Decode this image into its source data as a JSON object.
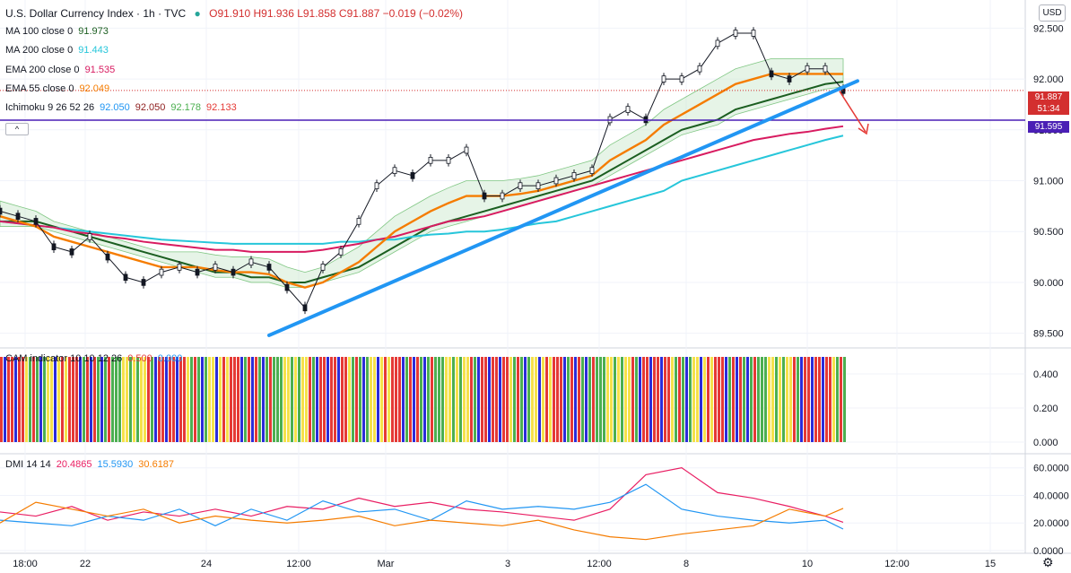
{
  "header": {
    "title": "U.S. Dollar Currency Index · 1h · TVC",
    "ohlc": "O91.910 H91.936 L91.858 C91.887 −0.019 (−0.02%)",
    "currency_button": "USD",
    "collapse_button": "^"
  },
  "legends": {
    "ma100": {
      "label": "MA 100 close 0",
      "value": "91.973",
      "color": "#1b5e20"
    },
    "ma200": {
      "label": "MA 200 close 0",
      "value": "91.443",
      "color": "#26c6da"
    },
    "ema200": {
      "label": "EMA 200 close 0",
      "value": "91.535",
      "color": "#d81b60"
    },
    "ema55": {
      "label": "EMA 55 close 0",
      "value": "92.049",
      "color": "#f57c00"
    },
    "ichimoku": {
      "label": "Ichimoku 9 26 52 26",
      "v1": "92.050",
      "v2": "92.050",
      "v3": "92.178",
      "v4": "92.133",
      "c1": "#2196f3",
      "c2": "#8d1c1c",
      "c3": "#4caf50",
      "c4": "#e53935"
    },
    "cam": {
      "label": "CAM indicator 10 10 12 26",
      "v1": "0.500",
      "v2": "0.000",
      "c1": "#e53935",
      "c2": "#2196f3"
    },
    "dmi": {
      "label": "DMI 14 14",
      "v1": "20.4865",
      "v2": "15.5930",
      "v3": "30.6187",
      "c1": "#e91e63",
      "c2": "#2196f3",
      "c3": "#f57c00"
    }
  },
  "price_tags": {
    "last": "91.887",
    "countdown": "51:34",
    "hline": "91.595"
  },
  "chart_data": [
    {
      "type": "line",
      "title": "U.S. Dollar Currency Index · 1h · TVC",
      "ylim": [
        89.4,
        92.6
      ],
      "y_ticks": [
        "92.500",
        "92.000",
        "91.500",
        "91.000",
        "90.500",
        "90.000",
        "89.500"
      ],
      "y_tick_values": [
        92.5,
        92.0,
        91.5,
        91.0,
        90.5,
        90.0,
        89.5
      ],
      "x_tick_labels": [
        "18:00",
        "22",
        "24",
        "12:00",
        "Mar",
        "3",
        "12:00",
        "8",
        "10",
        "12:00",
        "15"
      ],
      "x": [
        0,
        20,
        40,
        60,
        80,
        100,
        120,
        140,
        160,
        180,
        200,
        220,
        240,
        260,
        280,
        300,
        320,
        340,
        360,
        380,
        400,
        420,
        440,
        460,
        480,
        500,
        520,
        540,
        560,
        580,
        600,
        620,
        640,
        660,
        680,
        700,
        720,
        740,
        760,
        780,
        800,
        820,
        840,
        860,
        880,
        900,
        920,
        940
      ],
      "series": [
        {
          "name": "price",
          "color": "#131722",
          "values": [
            90.7,
            90.65,
            90.6,
            90.35,
            90.3,
            90.45,
            90.25,
            90.05,
            90.0,
            90.1,
            90.15,
            90.1,
            90.15,
            90.1,
            90.2,
            90.15,
            89.95,
            89.75,
            90.15,
            90.3,
            90.6,
            90.95,
            91.1,
            91.05,
            91.2,
            91.2,
            91.3,
            90.85,
            90.85,
            90.95,
            90.95,
            91.0,
            91.05,
            91.1,
            91.6,
            91.7,
            91.6,
            92.0,
            92.0,
            92.1,
            92.35,
            92.45,
            92.45,
            92.05,
            92.0,
            92.1,
            92.1,
            91.887
          ]
        },
        {
          "name": "MA 100 close 0",
          "color": "#1b5e20",
          "values": [
            90.6,
            90.6,
            90.6,
            90.55,
            90.5,
            90.45,
            90.4,
            90.35,
            90.3,
            90.25,
            90.2,
            90.15,
            90.1,
            90.1,
            90.05,
            90.05,
            90.0,
            90.0,
            90.05,
            90.1,
            90.15,
            90.25,
            90.35,
            90.45,
            90.55,
            90.6,
            90.65,
            90.7,
            90.75,
            90.8,
            90.85,
            90.9,
            90.95,
            91.0,
            91.1,
            91.2,
            91.3,
            91.4,
            91.5,
            91.55,
            91.6,
            91.7,
            91.75,
            91.8,
            91.85,
            91.9,
            91.95,
            91.973
          ]
        },
        {
          "name": "MA 200 close 0",
          "color": "#26c6da",
          "values": [
            90.6,
            90.58,
            90.56,
            90.54,
            90.52,
            90.5,
            90.48,
            90.46,
            90.44,
            90.42,
            90.41,
            90.4,
            90.39,
            90.38,
            90.38,
            90.38,
            90.38,
            90.38,
            90.38,
            90.4,
            90.4,
            90.42,
            90.42,
            90.45,
            90.47,
            90.48,
            90.5,
            90.5,
            90.52,
            90.55,
            90.58,
            90.6,
            90.65,
            90.7,
            90.75,
            90.8,
            90.85,
            90.9,
            91.0,
            91.05,
            91.1,
            91.15,
            91.2,
            91.25,
            91.3,
            91.35,
            91.4,
            91.443
          ]
        },
        {
          "name": "EMA 200 close 0",
          "color": "#d81b60",
          "values": [
            90.6,
            90.58,
            90.56,
            90.54,
            90.5,
            90.48,
            90.45,
            90.43,
            90.4,
            90.38,
            90.36,
            90.34,
            90.32,
            90.32,
            90.3,
            90.3,
            90.3,
            90.3,
            90.32,
            90.35,
            90.38,
            90.42,
            90.45,
            90.5,
            90.55,
            90.6,
            90.62,
            90.65,
            90.7,
            90.75,
            90.8,
            90.85,
            90.9,
            90.95,
            91.0,
            91.05,
            91.1,
            91.15,
            91.2,
            91.25,
            91.3,
            91.35,
            91.4,
            91.43,
            91.46,
            91.48,
            91.51,
            91.535
          ]
        },
        {
          "name": "EMA 55 close 0",
          "color": "#f57c00",
          "values": [
            90.65,
            90.6,
            90.55,
            90.45,
            90.4,
            90.35,
            90.3,
            90.25,
            90.2,
            90.15,
            90.15,
            90.15,
            90.12,
            90.1,
            90.1,
            90.08,
            90.0,
            89.95,
            90.0,
            90.1,
            90.2,
            90.35,
            90.5,
            90.6,
            90.7,
            90.78,
            90.85,
            90.85,
            90.85,
            90.87,
            90.9,
            90.95,
            91.0,
            91.05,
            91.2,
            91.3,
            91.4,
            91.55,
            91.65,
            91.75,
            91.85,
            91.95,
            92.0,
            92.05,
            92.05,
            92.05,
            92.05,
            92.049
          ]
        }
      ],
      "trendline": {
        "from": [
          300,
          89.48
        ],
        "to": [
          956,
          91.98
        ],
        "color": "#2196f3"
      },
      "hline": {
        "value": 91.595,
        "color": "#4a1fb5"
      }
    },
    {
      "type": "bar",
      "title": "CAM indicator 10 10 12 26",
      "ylim": [
        0,
        0.5
      ],
      "y_ticks": [
        "0.400",
        "0.200",
        "0.000"
      ],
      "y_tick_values": [
        0.4,
        0.2,
        0.0
      ],
      "colors_sequence": [
        "#e53935",
        "#f5e14a",
        "#4caf50",
        "#2b2bd9",
        "#e53935",
        "#f5e14a",
        "#e53935",
        "#2b2bd9",
        "#4caf50",
        "#f5e14a",
        "#e53935",
        "#2b2bd9",
        "#f5e14a",
        "#4caf50",
        "#e53935",
        "#2b2bd9",
        "#f5e14a",
        "#4caf50",
        "#4caf50",
        "#e53935",
        "#2b2bd9",
        "#f5e14a",
        "#e53935",
        "#f5e14a",
        "#4caf50",
        "#2b2bd9",
        "#e53935",
        "#f5e14a",
        "#4caf50",
        "#2b2bd9"
      ]
    },
    {
      "type": "line",
      "title": "DMI 14 14",
      "ylim": [
        0,
        65
      ],
      "y_ticks": [
        "60.0000",
        "40.0000",
        "20.0000",
        "0.0000"
      ],
      "y_tick_values": [
        60,
        40,
        20,
        0
      ],
      "x": [
        0,
        40,
        80,
        120,
        160,
        200,
        240,
        280,
        320,
        360,
        400,
        440,
        480,
        520,
        560,
        600,
        640,
        680,
        720,
        760,
        800,
        840,
        880,
        920,
        940
      ],
      "series": [
        {
          "name": "DMI 14 14 (20.4865)",
          "color": "#e91e63",
          "values": [
            28,
            25,
            32,
            22,
            28,
            25,
            30,
            25,
            32,
            30,
            38,
            32,
            35,
            30,
            28,
            25,
            22,
            30,
            55,
            60,
            42,
            38,
            32,
            25,
            20.4865
          ]
        },
        {
          "name": "DMI 14 14 (15.5930)",
          "color": "#2196f3",
          "values": [
            22,
            20,
            18,
            25,
            22,
            30,
            18,
            30,
            22,
            36,
            28,
            30,
            22,
            36,
            30,
            32,
            30,
            35,
            48,
            30,
            25,
            22,
            20,
            22,
            15.593
          ]
        },
        {
          "name": "DMI 14 14 (30.6187)",
          "color": "#f57c00",
          "values": [
            20,
            35,
            30,
            25,
            30,
            20,
            25,
            22,
            20,
            22,
            25,
            18,
            22,
            20,
            18,
            22,
            15,
            10,
            8,
            12,
            15,
            18,
            30,
            25,
            30.6187
          ]
        }
      ]
    }
  ]
}
